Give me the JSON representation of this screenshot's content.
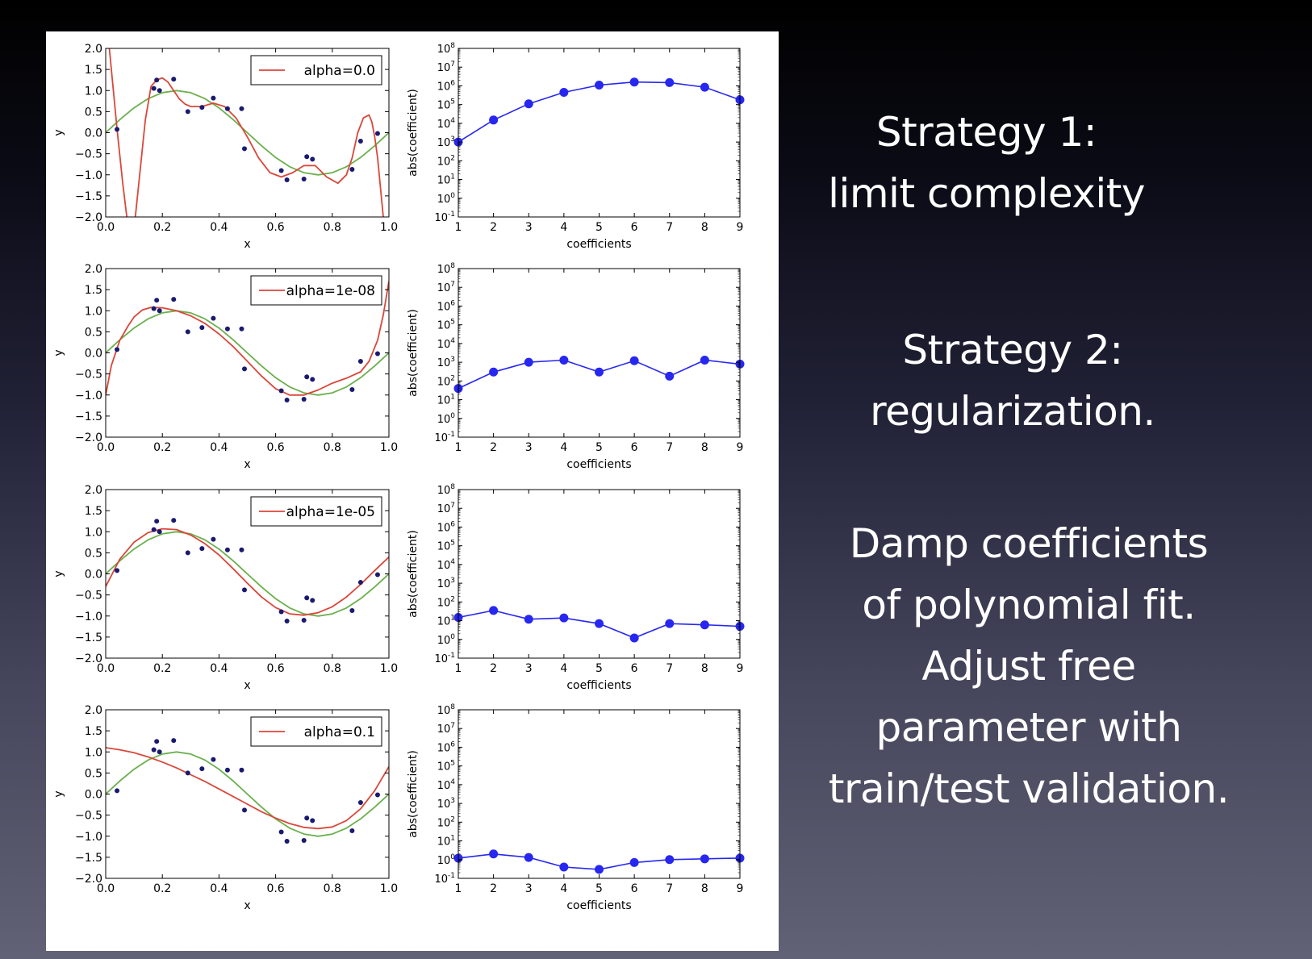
{
  "slide": {
    "strategy1": [
      "Strategy 1:",
      "limit complexity"
    ],
    "strategy2": [
      "Strategy 2:",
      "regularization."
    ],
    "damp": [
      "Damp coefficients",
      "of polynomial fit.",
      "Adjust free",
      "parameter with",
      "train/test validation."
    ]
  },
  "colors": {
    "fit": "#d9473a",
    "true_curve": "#6ab04c",
    "points": "#1a1a6e",
    "coef": "#2727f0"
  },
  "chart_data": [
    {
      "type": "line",
      "xlabel": "x",
      "ylabel": "y",
      "xlim": [
        0.0,
        1.0
      ],
      "ylim": [
        -2.0,
        2.0
      ],
      "xticks": [
        "0.0",
        "0.2",
        "0.4",
        "0.6",
        "0.8",
        "1.0"
      ],
      "yticks": [
        "2.0",
        "1.5",
        "1.0",
        "0.5",
        "0.0",
        "−0.5",
        "−1.0",
        "−1.5",
        "−2.0"
      ],
      "legend": "alpha=0.0",
      "legend_position": "top-right",
      "points": [
        [
          0.04,
          0.08
        ],
        [
          0.17,
          1.05
        ],
        [
          0.18,
          1.25
        ],
        [
          0.19,
          1.0
        ],
        [
          0.24,
          1.27
        ],
        [
          0.29,
          0.5
        ],
        [
          0.34,
          0.6
        ],
        [
          0.38,
          0.82
        ],
        [
          0.43,
          0.57
        ],
        [
          0.48,
          0.57
        ],
        [
          0.49,
          -0.38
        ],
        [
          0.62,
          -0.9
        ],
        [
          0.64,
          -1.12
        ],
        [
          0.7,
          -1.1
        ],
        [
          0.71,
          -0.57
        ],
        [
          0.73,
          -0.63
        ],
        [
          0.87,
          -0.87
        ],
        [
          0.9,
          -0.2
        ],
        [
          0.96,
          -0.02
        ]
      ],
      "series": [
        {
          "name": "alpha=0.0",
          "x": [
            0.01,
            0.02,
            0.03,
            0.04,
            0.06,
            0.08,
            0.1,
            0.12,
            0.14,
            0.16,
            0.18,
            0.2,
            0.22,
            0.24,
            0.26,
            0.28,
            0.3,
            0.34,
            0.38,
            0.42,
            0.46,
            0.5,
            0.54,
            0.58,
            0.62,
            0.66,
            0.7,
            0.74,
            0.78,
            0.82,
            0.85,
            0.87,
            0.89,
            0.91,
            0.93,
            0.94,
            0.95,
            0.96,
            0.97,
            0.98,
            0.99
          ],
          "y": [
            2.2,
            1.5,
            0.8,
            0.1,
            -1.2,
            -2.3,
            -2.3,
            -1.0,
            0.3,
            1.1,
            1.25,
            1.3,
            1.2,
            1.0,
            0.8,
            0.68,
            0.62,
            0.62,
            0.7,
            0.62,
            0.35,
            -0.1,
            -0.6,
            -0.95,
            -1.05,
            -0.95,
            -0.78,
            -0.78,
            -1.05,
            -1.2,
            -1.0,
            -0.6,
            0.0,
            0.35,
            0.42,
            0.25,
            -0.1,
            -0.6,
            -1.3,
            -2.0,
            -2.2
          ]
        },
        {
          "name": "",
          "x": [
            0.0,
            0.05,
            0.1,
            0.15,
            0.2,
            0.25,
            0.3,
            0.35,
            0.4,
            0.45,
            0.5,
            0.55,
            0.6,
            0.65,
            0.7,
            0.75,
            0.8,
            0.85,
            0.9,
            0.95,
            1.0
          ],
          "y": [
            0.0,
            0.31,
            0.59,
            0.81,
            0.95,
            1.0,
            0.95,
            0.81,
            0.59,
            0.31,
            0.0,
            -0.31,
            -0.59,
            -0.81,
            -0.95,
            -1.0,
            -0.95,
            -0.81,
            -0.59,
            -0.31,
            0.0
          ]
        }
      ]
    },
    {
      "type": "line",
      "scale": "log",
      "xlabel": "coefficients",
      "ylabel": "abs(coefficient)",
      "xlim": [
        1,
        9
      ],
      "ylim_exp": [
        -1,
        8
      ],
      "x": [
        1,
        2,
        3,
        4,
        5,
        6,
        7,
        8,
        9
      ],
      "values": [
        1000,
        15000,
        110000,
        450000,
        1100000,
        1600000,
        1500000,
        850000,
        180000
      ]
    },
    {
      "type": "line",
      "xlabel": "x",
      "ylabel": "y",
      "xlim": [
        0.0,
        1.0
      ],
      "ylim": [
        -2.0,
        2.0
      ],
      "xticks": [
        "0.0",
        "0.2",
        "0.4",
        "0.6",
        "0.8",
        "1.0"
      ],
      "yticks": [
        "2.0",
        "1.5",
        "1.0",
        "0.5",
        "0.0",
        "−0.5",
        "−1.0",
        "−1.5",
        "−2.0"
      ],
      "legend": "alpha=1e-08",
      "legend_position": "top-right",
      "points": [
        [
          0.04,
          0.08
        ],
        [
          0.17,
          1.05
        ],
        [
          0.18,
          1.25
        ],
        [
          0.19,
          1.0
        ],
        [
          0.24,
          1.27
        ],
        [
          0.29,
          0.5
        ],
        [
          0.34,
          0.6
        ],
        [
          0.38,
          0.82
        ],
        [
          0.43,
          0.57
        ],
        [
          0.48,
          0.57
        ],
        [
          0.49,
          -0.38
        ],
        [
          0.62,
          -0.9
        ],
        [
          0.64,
          -1.12
        ],
        [
          0.7,
          -1.1
        ],
        [
          0.71,
          -0.57
        ],
        [
          0.73,
          -0.63
        ],
        [
          0.87,
          -0.87
        ],
        [
          0.9,
          -0.2
        ],
        [
          0.96,
          -0.02
        ]
      ],
      "series": [
        {
          "name": "alpha=1e-08",
          "x": [
            0.0,
            0.02,
            0.05,
            0.08,
            0.1,
            0.13,
            0.16,
            0.2,
            0.25,
            0.3,
            0.35,
            0.4,
            0.45,
            0.5,
            0.55,
            0.6,
            0.65,
            0.7,
            0.75,
            0.8,
            0.85,
            0.9,
            0.93,
            0.96,
            0.98,
            1.0
          ],
          "y": [
            -1.0,
            -0.3,
            0.3,
            0.65,
            0.85,
            1.02,
            1.08,
            1.07,
            1.0,
            0.88,
            0.7,
            0.45,
            0.15,
            -0.2,
            -0.55,
            -0.85,
            -1.0,
            -1.0,
            -0.88,
            -0.72,
            -0.6,
            -0.45,
            -0.2,
            0.3,
            0.9,
            1.7
          ]
        },
        {
          "name": "",
          "x": [
            0.0,
            0.05,
            0.1,
            0.15,
            0.2,
            0.25,
            0.3,
            0.35,
            0.4,
            0.45,
            0.5,
            0.55,
            0.6,
            0.65,
            0.7,
            0.75,
            0.8,
            0.85,
            0.9,
            0.95,
            1.0
          ],
          "y": [
            0.0,
            0.31,
            0.59,
            0.81,
            0.95,
            1.0,
            0.95,
            0.81,
            0.59,
            0.31,
            0.0,
            -0.31,
            -0.59,
            -0.81,
            -0.95,
            -1.0,
            -0.95,
            -0.81,
            -0.59,
            -0.31,
            0.0
          ]
        }
      ]
    },
    {
      "type": "line",
      "scale": "log",
      "xlabel": "coefficients",
      "ylabel": "abs(coefficient)",
      "xlim": [
        1,
        9
      ],
      "ylim_exp": [
        -1,
        8
      ],
      "x": [
        1,
        2,
        3,
        4,
        5,
        6,
        7,
        8,
        9
      ],
      "values": [
        40,
        300,
        1000,
        1300,
        300,
        1200,
        180,
        1300,
        800
      ]
    },
    {
      "type": "line",
      "xlabel": "x",
      "ylabel": "y",
      "xlim": [
        0.0,
        1.0
      ],
      "ylim": [
        -2.0,
        2.0
      ],
      "xticks": [
        "0.0",
        "0.2",
        "0.4",
        "0.6",
        "0.8",
        "1.0"
      ],
      "yticks": [
        "2.0",
        "1.5",
        "1.0",
        "0.5",
        "0.0",
        "−0.5",
        "−1.0",
        "−1.5",
        "−2.0"
      ],
      "legend": "alpha=1e-05",
      "legend_position": "top-right",
      "points": [
        [
          0.04,
          0.08
        ],
        [
          0.17,
          1.05
        ],
        [
          0.18,
          1.25
        ],
        [
          0.19,
          1.0
        ],
        [
          0.24,
          1.27
        ],
        [
          0.29,
          0.5
        ],
        [
          0.34,
          0.6
        ],
        [
          0.38,
          0.82
        ],
        [
          0.43,
          0.57
        ],
        [
          0.48,
          0.57
        ],
        [
          0.49,
          -0.38
        ],
        [
          0.62,
          -0.9
        ],
        [
          0.64,
          -1.12
        ],
        [
          0.7,
          -1.1
        ],
        [
          0.71,
          -0.57
        ],
        [
          0.73,
          -0.63
        ],
        [
          0.87,
          -0.87
        ],
        [
          0.9,
          -0.2
        ],
        [
          0.96,
          -0.02
        ]
      ],
      "series": [
        {
          "name": "alpha=1e-05",
          "x": [
            0.0,
            0.05,
            0.1,
            0.15,
            0.2,
            0.25,
            0.3,
            0.35,
            0.4,
            0.45,
            0.5,
            0.55,
            0.6,
            0.65,
            0.7,
            0.75,
            0.8,
            0.85,
            0.9,
            0.95,
            1.0
          ],
          "y": [
            -0.3,
            0.35,
            0.75,
            0.98,
            1.07,
            1.05,
            0.92,
            0.72,
            0.45,
            0.12,
            -0.22,
            -0.55,
            -0.8,
            -0.95,
            -0.98,
            -0.92,
            -0.78,
            -0.55,
            -0.25,
            0.08,
            0.4
          ]
        },
        {
          "name": "",
          "x": [
            0.0,
            0.05,
            0.1,
            0.15,
            0.2,
            0.25,
            0.3,
            0.35,
            0.4,
            0.45,
            0.5,
            0.55,
            0.6,
            0.65,
            0.7,
            0.75,
            0.8,
            0.85,
            0.9,
            0.95,
            1.0
          ],
          "y": [
            0.0,
            0.31,
            0.59,
            0.81,
            0.95,
            1.0,
            0.95,
            0.81,
            0.59,
            0.31,
            0.0,
            -0.31,
            -0.59,
            -0.81,
            -0.95,
            -1.0,
            -0.95,
            -0.81,
            -0.59,
            -0.31,
            0.0
          ]
        }
      ]
    },
    {
      "type": "line",
      "scale": "log",
      "xlabel": "coefficients",
      "ylabel": "abs(coefficient)",
      "xlim": [
        1,
        9
      ],
      "ylim_exp": [
        -1,
        8
      ],
      "x": [
        1,
        2,
        3,
        4,
        5,
        6,
        7,
        8,
        9
      ],
      "values": [
        15,
        35,
        12,
        14,
        7,
        1.2,
        7,
        6,
        5
      ]
    },
    {
      "type": "line",
      "xlabel": "x",
      "ylabel": "y",
      "xlim": [
        0.0,
        1.0
      ],
      "ylim": [
        -2.0,
        2.0
      ],
      "xticks": [
        "0.0",
        "0.2",
        "0.4",
        "0.6",
        "0.8",
        "1.0"
      ],
      "yticks": [
        "2.0",
        "1.5",
        "1.0",
        "0.5",
        "0.0",
        "−0.5",
        "−1.0",
        "−1.5",
        "−2.0"
      ],
      "legend": "alpha=0.1",
      "legend_position": "top-right",
      "points": [
        [
          0.04,
          0.08
        ],
        [
          0.17,
          1.05
        ],
        [
          0.18,
          1.25
        ],
        [
          0.19,
          1.0
        ],
        [
          0.24,
          1.27
        ],
        [
          0.29,
          0.5
        ],
        [
          0.34,
          0.6
        ],
        [
          0.38,
          0.82
        ],
        [
          0.43,
          0.57
        ],
        [
          0.48,
          0.57
        ],
        [
          0.49,
          -0.38
        ],
        [
          0.62,
          -0.9
        ],
        [
          0.64,
          -1.12
        ],
        [
          0.7,
          -1.1
        ],
        [
          0.71,
          -0.57
        ],
        [
          0.73,
          -0.63
        ],
        [
          0.87,
          -0.87
        ],
        [
          0.9,
          -0.2
        ],
        [
          0.96,
          -0.02
        ]
      ],
      "series": [
        {
          "name": "alpha=0.1",
          "x": [
            0.0,
            0.05,
            0.1,
            0.15,
            0.2,
            0.25,
            0.3,
            0.35,
            0.4,
            0.45,
            0.5,
            0.55,
            0.6,
            0.65,
            0.7,
            0.75,
            0.8,
            0.85,
            0.9,
            0.95,
            1.0
          ],
          "y": [
            1.1,
            1.05,
            0.98,
            0.88,
            0.76,
            0.62,
            0.46,
            0.3,
            0.12,
            -0.06,
            -0.24,
            -0.42,
            -0.57,
            -0.7,
            -0.79,
            -0.82,
            -0.78,
            -0.63,
            -0.35,
            0.08,
            0.65
          ]
        },
        {
          "name": "",
          "x": [
            0.0,
            0.05,
            0.1,
            0.15,
            0.2,
            0.25,
            0.3,
            0.35,
            0.4,
            0.45,
            0.5,
            0.55,
            0.6,
            0.65,
            0.7,
            0.75,
            0.8,
            0.85,
            0.9,
            0.95,
            1.0
          ],
          "y": [
            0.0,
            0.31,
            0.59,
            0.81,
            0.95,
            1.0,
            0.95,
            0.81,
            0.59,
            0.31,
            0.0,
            -0.31,
            -0.59,
            -0.81,
            -0.95,
            -1.0,
            -0.95,
            -0.81,
            -0.59,
            -0.31,
            0.0
          ]
        }
      ]
    },
    {
      "type": "line",
      "scale": "log",
      "xlabel": "coefficients",
      "ylabel": "abs(coefficient)",
      "xlim": [
        1,
        9
      ],
      "ylim_exp": [
        -1,
        8
      ],
      "x": [
        1,
        2,
        3,
        4,
        5,
        6,
        7,
        8,
        9
      ],
      "values": [
        1.2,
        2.0,
        1.3,
        0.4,
        0.3,
        0.7,
        1.0,
        1.1,
        1.2
      ]
    }
  ]
}
